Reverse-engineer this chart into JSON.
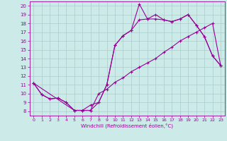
{
  "xlabel": "Windchill (Refroidissement éolien,°C)",
  "bg_color": "#cceae7",
  "line_color": "#990099",
  "grid_color": "#aacccc",
  "xlim": [
    -0.5,
    23.5
  ],
  "ylim": [
    7.5,
    20.5
  ],
  "xticks": [
    0,
    1,
    2,
    3,
    4,
    5,
    6,
    7,
    8,
    9,
    10,
    11,
    12,
    13,
    14,
    15,
    16,
    17,
    18,
    19,
    20,
    21,
    22,
    23
  ],
  "yticks": [
    8,
    9,
    10,
    11,
    12,
    13,
    14,
    15,
    16,
    17,
    18,
    19,
    20
  ],
  "line1_x": [
    0,
    1,
    2,
    3,
    4,
    5,
    6,
    7,
    8,
    9,
    10,
    11,
    12,
    13,
    14,
    15,
    16,
    17,
    18,
    19,
    20,
    21,
    22,
    23
  ],
  "line1_y": [
    11.2,
    9.9,
    9.4,
    9.5,
    9.0,
    8.1,
    8.1,
    8.1,
    10.0,
    10.5,
    11.3,
    11.8,
    12.5,
    13.0,
    13.5,
    14.0,
    14.7,
    15.3,
    16.0,
    16.5,
    17.0,
    17.5,
    18.0,
    13.2
  ],
  "line2_x": [
    0,
    1,
    2,
    3,
    4,
    5,
    6,
    7,
    8,
    9,
    10,
    11,
    12,
    13,
    14,
    15,
    16,
    17,
    18,
    19,
    20,
    21,
    22,
    23
  ],
  "line2_y": [
    11.2,
    9.9,
    9.4,
    9.5,
    9.0,
    8.1,
    8.1,
    8.7,
    9.0,
    11.0,
    15.5,
    16.6,
    17.2,
    18.4,
    18.5,
    18.5,
    18.4,
    18.2,
    18.5,
    19.0,
    17.8,
    16.5,
    14.3,
    13.2
  ],
  "line3_x": [
    0,
    5,
    6,
    7,
    8,
    9,
    10,
    11,
    12,
    13,
    14,
    15,
    16,
    17,
    18,
    19,
    20,
    21,
    22,
    23
  ],
  "line3_y": [
    11.2,
    8.1,
    8.1,
    8.1,
    9.0,
    11.0,
    15.5,
    16.6,
    17.2,
    20.2,
    18.5,
    19.0,
    18.4,
    18.2,
    18.5,
    19.0,
    17.8,
    16.5,
    14.3,
    13.2
  ]
}
